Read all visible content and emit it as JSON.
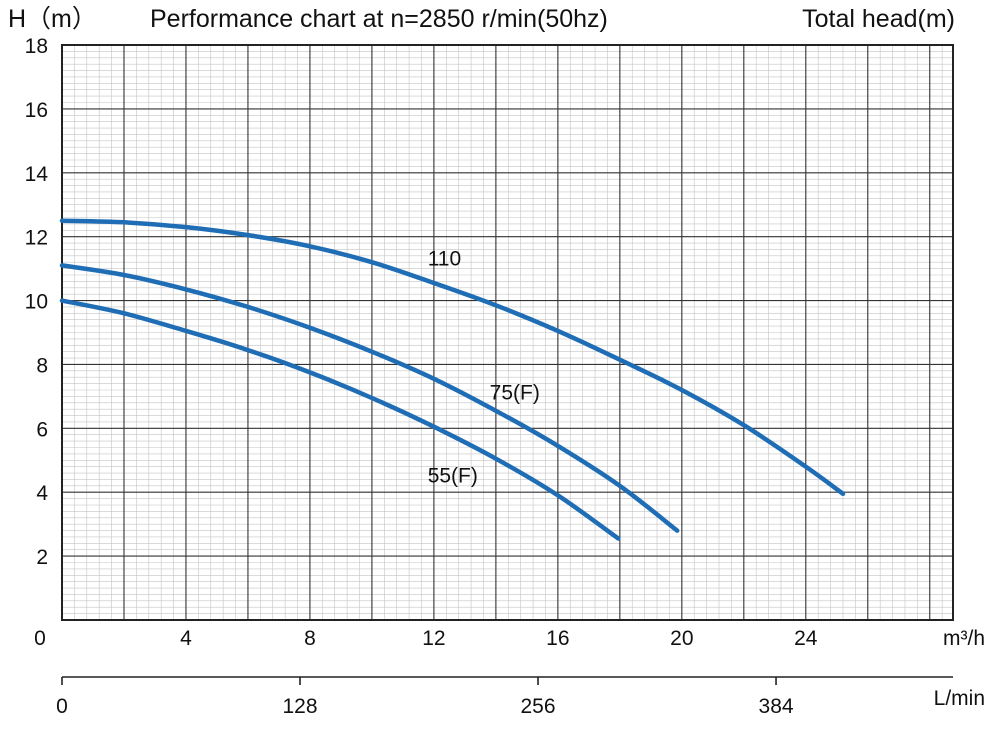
{
  "chart_data": {
    "type": "line",
    "title": "Performance chart at n=2850 r/min(50hz)",
    "y_axis_label": "H（m）",
    "y_axis_title_right": "Total head(m)",
    "x_unit": "m³/h",
    "x2_unit": "L/min",
    "xlim": [
      0,
      28.75
    ],
    "ylim": [
      0,
      18
    ],
    "x_ticks": [
      0,
      4,
      8,
      12,
      16,
      20,
      24
    ],
    "x_tick_labels": [
      "0",
      "4",
      "8",
      "12",
      "16",
      "20",
      "24"
    ],
    "y_ticks": [
      2,
      4,
      6,
      8,
      10,
      12,
      14,
      16,
      18
    ],
    "y_tick_labels": [
      "2",
      "4",
      "6",
      "8",
      "10",
      "12",
      "14",
      "16",
      "18"
    ],
    "x2_ticks": [
      0,
      128,
      256,
      384
    ],
    "x2_tick_labels": [
      "0",
      "128",
      "256",
      "384"
    ],
    "grid": true,
    "series": [
      {
        "name": "110",
        "color": "#1f6db5",
        "x": [
          0,
          2,
          4,
          6,
          8,
          10,
          12,
          14,
          16,
          18,
          20,
          22,
          24,
          25.2
        ],
        "y": [
          12.5,
          12.45,
          12.3,
          12.05,
          11.7,
          11.2,
          10.55,
          9.85,
          9.05,
          8.15,
          7.2,
          6.1,
          4.8,
          3.95
        ]
      },
      {
        "name": "75(F)",
        "color": "#1f6db5",
        "x": [
          0,
          2,
          4,
          6,
          8,
          10,
          12,
          14,
          16,
          18,
          19.85
        ],
        "y": [
          11.1,
          10.8,
          10.35,
          9.8,
          9.15,
          8.4,
          7.55,
          6.55,
          5.45,
          4.2,
          2.8
        ]
      },
      {
        "name": "55(F)",
        "color": "#1f6db5",
        "x": [
          0,
          2,
          4,
          6,
          8,
          10,
          12,
          14,
          16,
          17.95
        ],
        "y": [
          10.0,
          9.6,
          9.05,
          8.45,
          7.75,
          6.95,
          6.05,
          5.05,
          3.9,
          2.55
        ]
      }
    ],
    "curve_labels": [
      {
        "text": "110",
        "x": 11.8,
        "y": 11.1
      },
      {
        "text": "75(F)",
        "x": 13.8,
        "y": 6.9
      },
      {
        "text": "55(F)",
        "x": 11.8,
        "y": 4.3
      }
    ]
  }
}
